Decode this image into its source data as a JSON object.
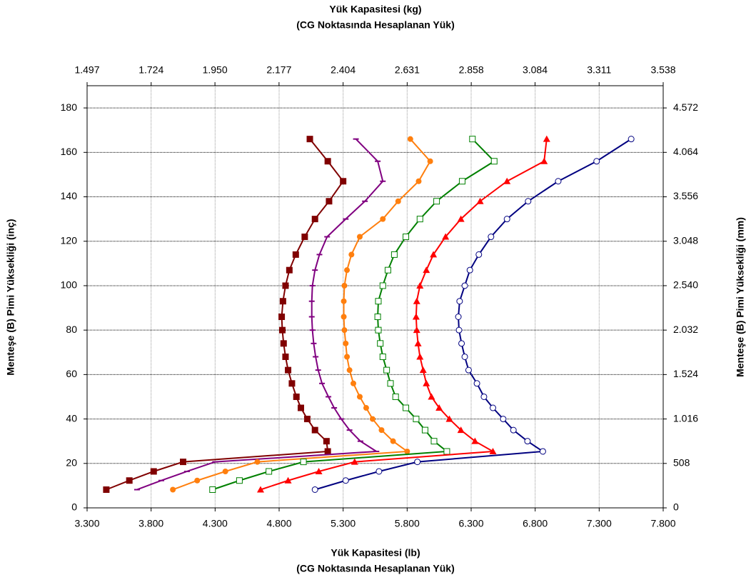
{
  "chart_data": {
    "type": "line",
    "xlabel": [
      "Yük Kapasitesi (lb)",
      "(CG Noktasında Hesaplanan Yük)"
    ],
    "x2label": [
      "Yük Kapasitesi (kg)",
      "(CG Noktasında Hesaplanan Yük)"
    ],
    "ylabel": "Menteşe (B) Pimi Yüksekliği (inç)",
    "y2label": "Menteşe (B) Pimi Yüksekliği (mm)",
    "xlim": [
      3300,
      7800
    ],
    "xticks": [
      {
        "value": 3300,
        "label": "3.300"
      },
      {
        "value": 3800,
        "label": "3.800"
      },
      {
        "value": 4300,
        "label": "4.300"
      },
      {
        "value": 4800,
        "label": "4.800"
      },
      {
        "value": 5300,
        "label": "5.300"
      },
      {
        "value": 5800,
        "label": "5.800"
      },
      {
        "value": 6300,
        "label": "6.300"
      },
      {
        "value": 6800,
        "label": "6.800"
      },
      {
        "value": 7300,
        "label": "7.300"
      },
      {
        "value": 7800,
        "label": "7.800"
      }
    ],
    "x2lim": [
      1497,
      3538
    ],
    "x2ticks": [
      {
        "value": 1497,
        "label": "1.497"
      },
      {
        "value": 1724,
        "label": "1.724"
      },
      {
        "value": 1950,
        "label": "1.950"
      },
      {
        "value": 2177,
        "label": "2.177"
      },
      {
        "value": 2404,
        "label": "2.404"
      },
      {
        "value": 2631,
        "label": "2.631"
      },
      {
        "value": 2858,
        "label": "2.858"
      },
      {
        "value": 3084,
        "label": "3.084"
      },
      {
        "value": 3311,
        "label": "3.311"
      },
      {
        "value": 3538,
        "label": "3.538"
      }
    ],
    "ylim": [
      0,
      190
    ],
    "yticks": [
      0,
      20,
      40,
      60,
      80,
      100,
      120,
      140,
      160,
      180
    ],
    "y2lim": [
      0,
      4826
    ],
    "y2ticks": [
      0,
      508,
      {
        "value": 1016,
        "label": "1.016"
      },
      {
        "value": 1524,
        "label": "1.524"
      },
      {
        "value": 2032,
        "label": "2.032"
      },
      {
        "value": 2540,
        "label": "2.540"
      },
      {
        "value": 3048,
        "label": "3.048"
      },
      {
        "value": 3556,
        "label": "3.556"
      },
      {
        "value": 4064,
        "label": "4.064"
      },
      {
        "value": 4572,
        "label": "4.572"
      }
    ],
    "grid": true,
    "y": [
      8.2,
      12.3,
      16.4,
      20.7,
      25.4,
      30,
      35,
      40,
      45,
      50,
      56,
      62,
      68,
      74,
      80,
      86,
      93,
      100,
      107,
      114,
      122,
      130,
      138,
      147,
      156,
      166
    ],
    "series": [
      {
        "color": "#800000",
        "marker": "square",
        "x": [
          3450,
          3630,
          3820,
          4050,
          5180,
          5170,
          5080,
          5020,
          4970,
          4935,
          4900,
          4870,
          4850,
          4835,
          4825,
          4820,
          4830,
          4850,
          4880,
          4930,
          5000,
          5080,
          5190,
          5300,
          5180,
          5040
        ]
      },
      {
        "color": "#800080",
        "marker": "dash",
        "x": [
          3690,
          3880,
          4080,
          4300,
          5560,
          5435,
          5350,
          5285,
          5230,
          5185,
          5135,
          5105,
          5085,
          5070,
          5060,
          5055,
          5055,
          5060,
          5080,
          5115,
          5175,
          5320,
          5470,
          5610,
          5570,
          5400
        ]
      },
      {
        "color": "#ff7f0e",
        "marker": "circle",
        "x": [
          3970,
          4160,
          4380,
          4630,
          5800,
          5690,
          5600,
          5530,
          5480,
          5430,
          5380,
          5350,
          5330,
          5320,
          5310,
          5305,
          5305,
          5310,
          5330,
          5365,
          5430,
          5610,
          5730,
          5890,
          5980,
          5825
        ]
      },
      {
        "color": "#008000",
        "marker": "open-square",
        "x": [
          4280,
          4490,
          4720,
          4990,
          6110,
          6010,
          5940,
          5870,
          5790,
          5710,
          5670,
          5640,
          5610,
          5590,
          5575,
          5570,
          5575,
          5610,
          5650,
          5700,
          5790,
          5900,
          6030,
          6230,
          6480,
          6310
        ]
      },
      {
        "color": "#ff0000",
        "marker": "triangle",
        "x": [
          4655,
          4870,
          5110,
          5390,
          6470,
          6330,
          6220,
          6130,
          6050,
          5990,
          5950,
          5925,
          5900,
          5885,
          5875,
          5870,
          5875,
          5900,
          5950,
          6005,
          6100,
          6220,
          6370,
          6580,
          6870,
          6890
        ]
      },
      {
        "color": "#000080",
        "marker": "open-circle",
        "x": [
          5080,
          5320,
          5580,
          5880,
          6860,
          6740,
          6630,
          6550,
          6470,
          6400,
          6345,
          6280,
          6250,
          6225,
          6205,
          6200,
          6210,
          6250,
          6290,
          6360,
          6455,
          6580,
          6745,
          6980,
          7280,
          7550
        ]
      }
    ]
  }
}
